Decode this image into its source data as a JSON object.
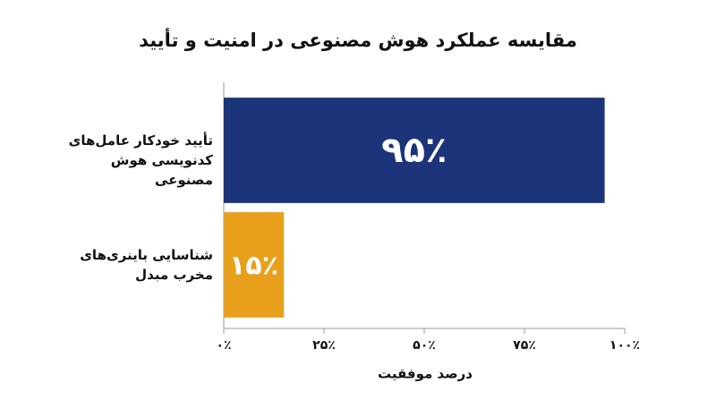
{
  "chart_data": {
    "type": "barh",
    "title": "مقایسه عملکرد هوش مصنوعی در امنیت و تأیید",
    "categories": [
      "تأیید خودکار عامل‌های کدنویسی هوش مصنوعی",
      "شناسایی باینری‌های مخرب مبدل"
    ],
    "values": [
      95,
      15
    ],
    "value_labels": [
      "۹۵٪",
      "۱۵٪"
    ],
    "colors": [
      "#1b347a",
      "#e8a01c"
    ],
    "xlabel": "درصد موفقیت",
    "xlim": [
      0,
      100
    ],
    "xticks": [
      {
        "value": 0,
        "label": "۰٪"
      },
      {
        "value": 25,
        "label": "۲۵٪"
      },
      {
        "value": 50,
        "label": "۵۰٪"
      },
      {
        "value": 75,
        "label": "۷۵٪"
      },
      {
        "value": 100,
        "label": "۱۰۰٪"
      }
    ],
    "grid": false
  }
}
